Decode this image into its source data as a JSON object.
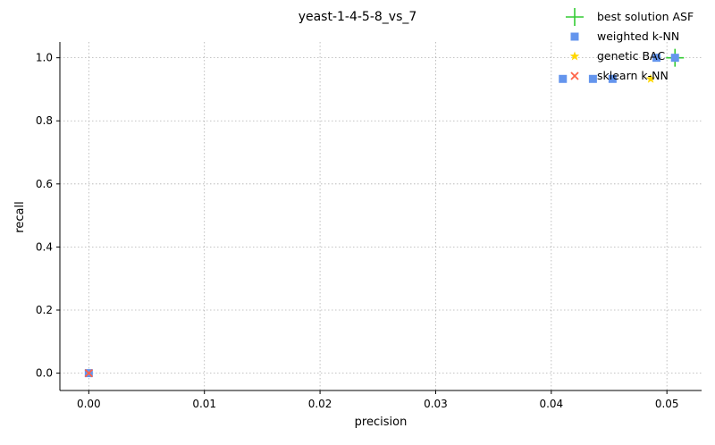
{
  "chart_data": {
    "type": "scatter",
    "title": "yeast-1-4-5-8_vs_7",
    "xlabel": "precision",
    "ylabel": "recall",
    "xlim": [
      -0.0025,
      0.053
    ],
    "ylim": [
      -0.055,
      1.05
    ],
    "x_ticks": [
      "0.00",
      "0.01",
      "0.02",
      "0.03",
      "0.04",
      "0.05"
    ],
    "x_tick_values": [
      0.0,
      0.01,
      0.02,
      0.03,
      0.04,
      0.05
    ],
    "y_ticks": [
      "0.0",
      "0.2",
      "0.4",
      "0.6",
      "0.8",
      "1.0"
    ],
    "y_tick_values": [
      0.0,
      0.2,
      0.4,
      0.6,
      0.8,
      1.0
    ],
    "grid": true,
    "legend_position": "top-right",
    "series": [
      {
        "name": "best solution ASF",
        "marker": "plus",
        "color": "#33cc33",
        "points": [
          [
            0.0507,
            1.0
          ]
        ]
      },
      {
        "name": "weighted k-NN",
        "marker": "square",
        "color": "#6495ed",
        "points": [
          [
            0.0,
            0.0
          ],
          [
            0.041,
            0.933
          ],
          [
            0.0436,
            0.933
          ],
          [
            0.0453,
            0.933
          ],
          [
            0.0491,
            1.0
          ],
          [
            0.0507,
            1.0
          ]
        ]
      },
      {
        "name": "genetic BAC",
        "marker": "star",
        "color": "#ffd700",
        "points": [
          [
            0.0486,
            0.933
          ]
        ]
      },
      {
        "name": "sklearn k-NN",
        "marker": "x",
        "color": "#ff6347",
        "points": [
          [
            0.0,
            0.0
          ]
        ]
      }
    ]
  }
}
